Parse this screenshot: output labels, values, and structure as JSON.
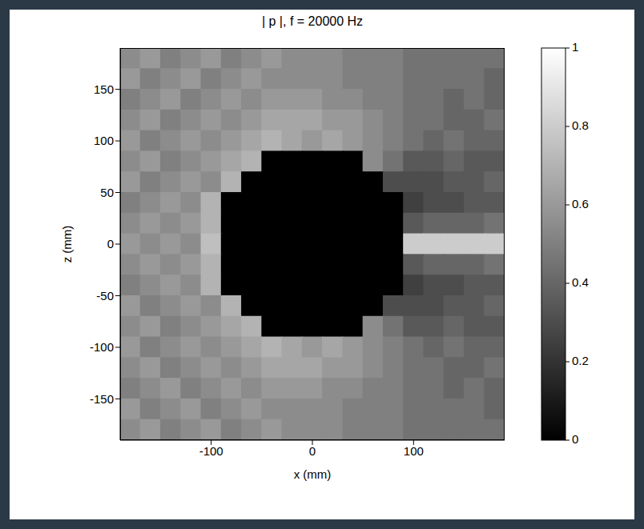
{
  "chart_data": {
    "type": "heatmap",
    "title": "| p |, f = 20000 Hz",
    "x_label": "x (mm)",
    "y_label": "z (mm)",
    "color": "gray",
    "xlim": [
      -190,
      190
    ],
    "ylim": [
      -190,
      190
    ],
    "xticks": [
      -100,
      0,
      100
    ],
    "yticks": [
      -150,
      -100,
      -50,
      0,
      50,
      100,
      150
    ],
    "x": [
      -180,
      -160,
      -140,
      -120,
      -100,
      -80,
      -60,
      -40,
      -20,
      0,
      20,
      40,
      60,
      80,
      100,
      120,
      140,
      160,
      180
    ],
    "y": [
      180,
      160,
      140,
      120,
      100,
      80,
      60,
      40,
      20,
      0,
      -20,
      -40,
      -60,
      -80,
      -100,
      -120,
      -140,
      -160,
      -180
    ],
    "cells": [
      [
        0.55,
        0.6,
        0.5,
        0.55,
        0.6,
        0.5,
        0.55,
        0.6,
        0.55,
        0.55,
        0.55,
        0.5,
        0.5,
        0.5,
        0.45,
        0.45,
        0.45,
        0.45,
        0.45
      ],
      [
        0.6,
        0.5,
        0.55,
        0.6,
        0.5,
        0.55,
        0.6,
        0.55,
        0.55,
        0.55,
        0.55,
        0.5,
        0.5,
        0.5,
        0.45,
        0.45,
        0.45,
        0.45,
        0.4
      ],
      [
        0.5,
        0.55,
        0.6,
        0.5,
        0.55,
        0.6,
        0.55,
        0.6,
        0.6,
        0.6,
        0.55,
        0.55,
        0.5,
        0.5,
        0.45,
        0.45,
        0.4,
        0.45,
        0.4
      ],
      [
        0.55,
        0.6,
        0.5,
        0.55,
        0.6,
        0.55,
        0.6,
        0.65,
        0.65,
        0.65,
        0.6,
        0.6,
        0.55,
        0.5,
        0.45,
        0.45,
        0.4,
        0.4,
        0.45
      ],
      [
        0.6,
        0.5,
        0.55,
        0.6,
        0.55,
        0.6,
        0.65,
        0.7,
        0.65,
        0.6,
        0.65,
        0.6,
        0.55,
        0.5,
        0.45,
        0.4,
        0.45,
        0.4,
        0.4
      ],
      [
        0.55,
        0.6,
        0.5,
        0.55,
        0.6,
        0.65,
        0.7,
        0,
        0,
        0,
        0,
        0,
        0.55,
        0.45,
        0.35,
        0.35,
        0.4,
        0.35,
        0.35
      ],
      [
        0.6,
        0.5,
        0.55,
        0.6,
        0.55,
        0.7,
        0,
        0,
        0,
        0,
        0,
        0,
        0,
        0.3,
        0.3,
        0.3,
        0.35,
        0.35,
        0.4
      ],
      [
        0.5,
        0.55,
        0.6,
        0.55,
        0.7,
        0,
        0,
        0,
        0,
        0,
        0,
        0,
        0,
        0,
        0.25,
        0.3,
        0.3,
        0.35,
        0.35
      ],
      [
        0.55,
        0.6,
        0.55,
        0.6,
        0.7,
        0,
        0,
        0,
        0,
        0,
        0,
        0,
        0,
        0,
        0.35,
        0.4,
        0.4,
        0.4,
        0.45
      ],
      [
        0.6,
        0.55,
        0.6,
        0.55,
        0.75,
        0,
        0,
        0,
        0,
        0,
        0,
        0,
        0,
        0,
        0.8,
        0.8,
        0.8,
        0.8,
        0.8
      ],
      [
        0.55,
        0.6,
        0.55,
        0.6,
        0.7,
        0,
        0,
        0,
        0,
        0,
        0,
        0,
        0,
        0,
        0.35,
        0.4,
        0.4,
        0.4,
        0.45
      ],
      [
        0.5,
        0.55,
        0.6,
        0.55,
        0.7,
        0,
        0,
        0,
        0,
        0,
        0,
        0,
        0,
        0,
        0.25,
        0.3,
        0.3,
        0.35,
        0.35
      ],
      [
        0.6,
        0.5,
        0.55,
        0.6,
        0.55,
        0.7,
        0,
        0,
        0,
        0,
        0,
        0,
        0,
        0.3,
        0.3,
        0.3,
        0.35,
        0.35,
        0.4
      ],
      [
        0.55,
        0.6,
        0.5,
        0.55,
        0.6,
        0.65,
        0.7,
        0,
        0,
        0,
        0,
        0,
        0.55,
        0.45,
        0.35,
        0.35,
        0.4,
        0.35,
        0.35
      ],
      [
        0.6,
        0.5,
        0.55,
        0.6,
        0.55,
        0.6,
        0.65,
        0.7,
        0.65,
        0.6,
        0.65,
        0.6,
        0.55,
        0.5,
        0.45,
        0.4,
        0.45,
        0.4,
        0.4
      ],
      [
        0.55,
        0.6,
        0.5,
        0.55,
        0.6,
        0.55,
        0.6,
        0.65,
        0.65,
        0.65,
        0.6,
        0.6,
        0.55,
        0.5,
        0.45,
        0.45,
        0.4,
        0.4,
        0.45
      ],
      [
        0.5,
        0.55,
        0.6,
        0.5,
        0.55,
        0.6,
        0.55,
        0.6,
        0.6,
        0.6,
        0.55,
        0.55,
        0.5,
        0.5,
        0.45,
        0.45,
        0.4,
        0.45,
        0.4
      ],
      [
        0.6,
        0.5,
        0.55,
        0.6,
        0.5,
        0.55,
        0.6,
        0.55,
        0.55,
        0.55,
        0.55,
        0.5,
        0.5,
        0.5,
        0.45,
        0.45,
        0.45,
        0.45,
        0.4
      ],
      [
        0.55,
        0.6,
        0.5,
        0.55,
        0.6,
        0.5,
        0.55,
        0.6,
        0.55,
        0.55,
        0.55,
        0.5,
        0.5,
        0.5,
        0.45,
        0.45,
        0.45,
        0.45,
        0.45
      ]
    ],
    "colorbar": {
      "range": [
        0,
        1
      ],
      "ticks": [
        0,
        0.2,
        0.4,
        0.6,
        0.8,
        1
      ]
    }
  }
}
